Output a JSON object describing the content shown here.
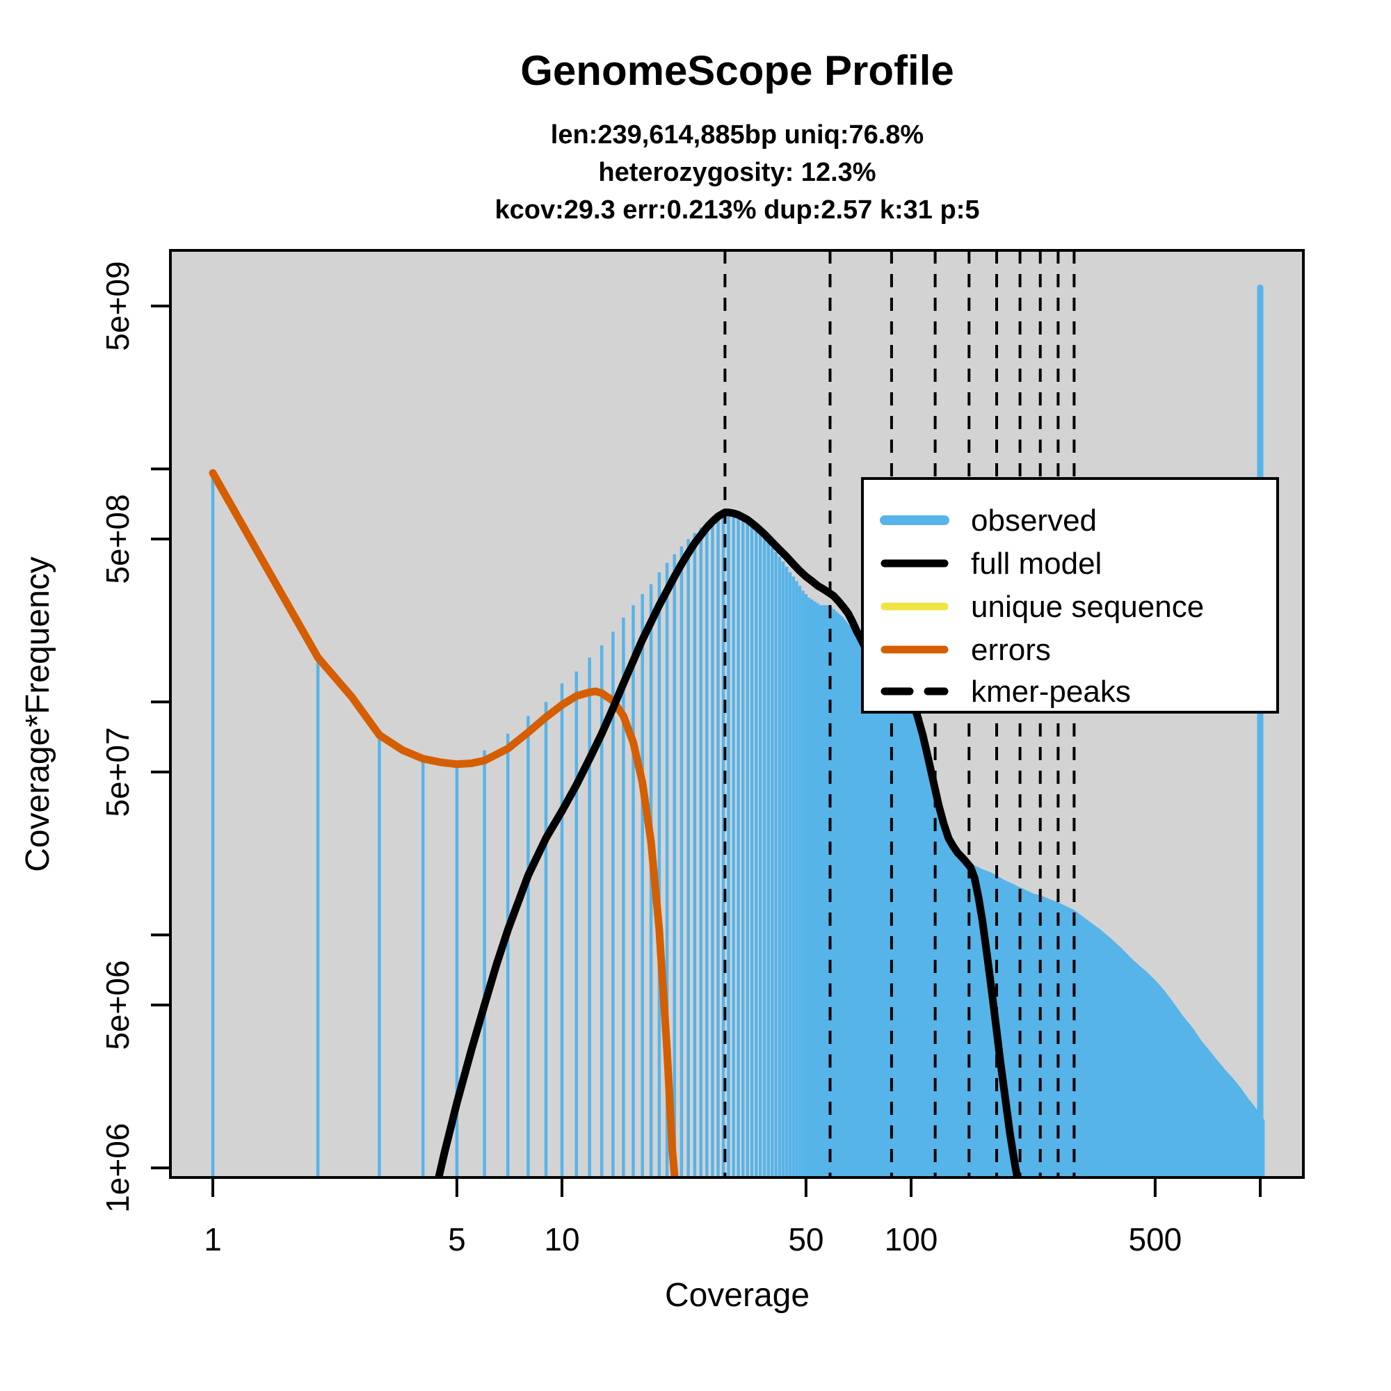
{
  "title": "GenomeScope Profile",
  "subtitle_lines": [
    "len:239,614,885bp uniq:76.8%",
    "heterozygosity: 12.3%",
    "kcov:29.3 err:0.213%  dup:2.57  k:31 p:5"
  ],
  "colors": {
    "observed": "#56B4E9",
    "full_model": "#000000",
    "unique_sequence": "#F0E442",
    "errors": "#D55E00",
    "kmer_peaks": "#000000",
    "plot_background": "#D3D3D3",
    "page_background": "#FFFFFF"
  },
  "legend": {
    "items": [
      {
        "label": "observed",
        "color": "#56B4E9",
        "style": "solid"
      },
      {
        "label": "full model",
        "color": "#000000",
        "style": "solid"
      },
      {
        "label": "unique sequence",
        "color": "#F0E442",
        "style": "solid"
      },
      {
        "label": "errors",
        "color": "#D55E00",
        "style": "solid"
      },
      {
        "label": "kmer-peaks",
        "color": "#000000",
        "style": "dashed"
      }
    ]
  },
  "axes": {
    "x": {
      "label": "Coverage",
      "scale": "log",
      "ticks": [
        {
          "v": 1,
          "label": "1"
        },
        {
          "v": 5,
          "label": "5"
        },
        {
          "v": 10,
          "label": "10"
        },
        {
          "v": 50,
          "label": "50"
        },
        {
          "v": 100,
          "label": "100"
        },
        {
          "v": 500,
          "label": "500"
        },
        {
          "v": 1000,
          "label": ""
        }
      ]
    },
    "y": {
      "label": "Coverage*Frequency",
      "scale": "log",
      "ticks": [
        {
          "v": 1000000.0,
          "label": "1e+06"
        },
        {
          "v": 5000000.0,
          "label": "5e+06"
        },
        {
          "v": 10000000.0,
          "label": ""
        },
        {
          "v": 50000000.0,
          "label": "5e+07"
        },
        {
          "v": 100000000.0,
          "label": ""
        },
        {
          "v": 500000000.0,
          "label": "5e+08"
        },
        {
          "v": 1000000000.0,
          "label": ""
        },
        {
          "v": 5000000000.0,
          "label": "5e+09"
        }
      ]
    }
  },
  "chart_data": {
    "type": "area",
    "title": "GenomeScope Profile",
    "xlabel": "Coverage",
    "ylabel": "Coverage*Frequency",
    "x_domain": [
      0.76,
      1330
    ],
    "y_domain": [
      910000.0,
      8700000000.0
    ],
    "grid": false,
    "legend_position": "upper-right-inside",
    "kmer_peaks": [
      29.3,
      58.6,
      87.9,
      117.2,
      146.5,
      175.8,
      205.1,
      234.4,
      263.7,
      293.0
    ],
    "observed_bars": {
      "start_coverage": 1,
      "values": [
        960000000.0,
        153000000.0,
        70000000.0,
        56000000.0,
        55000000.0,
        62000000.0,
        73000000.0,
        87000000.0,
        100000000.0,
        120000000.0,
        135000000.0,
        155000000.0,
        175000000.0,
        200000000.0,
        230000000.0,
        260000000.0,
        290000000.0,
        320000000.0,
        360000000.0,
        395000000.0,
        430000000.0,
        465000000.0,
        500000000.0,
        530000000.0,
        560000000.0,
        590000000.0,
        610000000.0,
        630000000.0,
        640000000.0,
        645000000.0,
        640000000.0,
        630000000.0,
        615000000.0,
        600000000.0,
        580000000.0,
        560000000.0,
        535000000.0,
        510000000.0,
        485000000.0,
        460000000.0,
        440000000.0,
        420000000.0,
        400000000.0,
        380000000.0,
        360000000.0,
        345000000.0,
        330000000.0,
        315000000.0,
        300000000.0,
        290000000.0,
        280000000.0,
        275000000.0,
        270000000.0,
        265000000.0,
        260000000.0,
        260000000.0,
        260000000.0,
        260000000.0,
        255000000.0,
        250000000.0
      ]
    },
    "observed_tail": [
      [
        60,
        250000000.0
      ],
      [
        64,
        230000000.0
      ],
      [
        68,
        205000000.0
      ],
      [
        72,
        180000000.0
      ],
      [
        76,
        155000000.0
      ],
      [
        80,
        135000000.0
      ],
      [
        84,
        120000000.0
      ],
      [
        88,
        112000000.0
      ],
      [
        92,
        108000000.0
      ],
      [
        96,
        106000000.0
      ],
      [
        100,
        105000000.0
      ],
      [
        104,
        88000000.0
      ],
      [
        108,
        71000000.0
      ],
      [
        112,
        56000000.0
      ],
      [
        116,
        45000000.0
      ],
      [
        120,
        37000000.0
      ],
      [
        124,
        31000000.0
      ],
      [
        128,
        27500000.0
      ],
      [
        132,
        25000000.0
      ],
      [
        136,
        23500000.0
      ],
      [
        140,
        22500000.0
      ],
      [
        145,
        21000000.0
      ],
      [
        150,
        20000000.0
      ],
      [
        156,
        19500000.0
      ],
      [
        162,
        19000000.0
      ],
      [
        170,
        18500000.0
      ],
      [
        176,
        18000000.0
      ],
      [
        185,
        17200000.0
      ],
      [
        195,
        16600000.0
      ],
      [
        205,
        16000000.0
      ],
      [
        215,
        15500000.0
      ],
      [
        225,
        15000000.0
      ],
      [
        235,
        14800000.0
      ],
      [
        250,
        14200000.0
      ],
      [
        264,
        13800000.0
      ],
      [
        280,
        13200000.0
      ],
      [
        293,
        12800000.0
      ],
      [
        310,
        12000000.0
      ],
      [
        330,
        11200000.0
      ],
      [
        350,
        10500000.0
      ],
      [
        375,
        9600000.0
      ],
      [
        400,
        8800000.0
      ],
      [
        425,
        8000000.0
      ],
      [
        450,
        7400000.0
      ],
      [
        475,
        6900000.0
      ],
      [
        500,
        6400000.0
      ],
      [
        530,
        5800000.0
      ],
      [
        560,
        5200000.0
      ],
      [
        600,
        4500000.0
      ],
      [
        640,
        4000000.0
      ],
      [
        680,
        3500000.0
      ],
      [
        720,
        3150000.0
      ],
      [
        760,
        2850000.0
      ],
      [
        800,
        2600000.0
      ],
      [
        840,
        2400000.0
      ],
      [
        880,
        2200000.0
      ],
      [
        920,
        2000000.0
      ],
      [
        960,
        1850000.0
      ],
      [
        1000,
        1700000.0
      ],
      [
        1030,
        1600000.0
      ]
    ],
    "observed_last_bin": {
      "coverage": 1000,
      "value": 6000000000.0
    },
    "full_model": [
      [
        4.35,
        800000.0
      ],
      [
        4.6,
        1150000.0
      ],
      [
        5,
        1900000.0
      ],
      [
        5.5,
        3200000.0
      ],
      [
        6,
        5000000.0
      ],
      [
        6.5,
        7500000.0
      ],
      [
        7,
        10500000.0
      ],
      [
        8,
        18000000.0
      ],
      [
        9,
        26000000.0
      ],
      [
        10,
        34000000.0
      ],
      [
        11,
        44000000.0
      ],
      [
        12,
        57000000.0
      ],
      [
        13,
        73000000.0
      ],
      [
        14,
        94000000.0
      ],
      [
        15,
        120000000.0
      ],
      [
        16,
        150000000.0
      ],
      [
        17,
        185000000.0
      ],
      [
        18,
        220000000.0
      ],
      [
        19,
        260000000.0
      ],
      [
        20,
        300000000.0
      ],
      [
        21,
        345000000.0
      ],
      [
        22,
        390000000.0
      ],
      [
        23,
        435000000.0
      ],
      [
        24,
        480000000.0
      ],
      [
        25,
        520000000.0
      ],
      [
        26,
        560000000.0
      ],
      [
        27,
        595000000.0
      ],
      [
        28,
        625000000.0
      ],
      [
        29,
        645000000.0
      ],
      [
        29.3,
        650000000.0
      ],
      [
        30,
        650000000.0
      ],
      [
        31,
        645000000.0
      ],
      [
        32,
        635000000.0
      ],
      [
        33,
        620000000.0
      ],
      [
        34,
        605000000.0
      ],
      [
        35,
        585000000.0
      ],
      [
        36,
        565000000.0
      ],
      [
        38,
        525000000.0
      ],
      [
        40,
        485000000.0
      ],
      [
        42,
        450000000.0
      ],
      [
        44,
        420000000.0
      ],
      [
        46,
        390000000.0
      ],
      [
        48,
        365000000.0
      ],
      [
        50,
        345000000.0
      ],
      [
        52,
        330000000.0
      ],
      [
        54,
        315000000.0
      ],
      [
        56,
        305000000.0
      ],
      [
        58,
        295000000.0
      ],
      [
        60,
        285000000.0
      ],
      [
        62,
        270000000.0
      ],
      [
        64,
        255000000.0
      ],
      [
        66,
        240000000.0
      ],
      [
        68,
        220000000.0
      ],
      [
        70,
        200000000.0
      ],
      [
        72,
        185000000.0
      ],
      [
        74,
        170000000.0
      ],
      [
        76,
        155000000.0
      ],
      [
        78,
        142000000.0
      ],
      [
        80,
        132000000.0
      ],
      [
        82,
        125000000.0
      ],
      [
        84,
        120000000.0
      ],
      [
        86,
        116000000.0
      ],
      [
        88,
        113000000.0
      ],
      [
        90,
        111000000.0
      ],
      [
        93,
        108000000.0
      ],
      [
        96,
        106000000.0
      ],
      [
        100,
        104000000.0
      ],
      [
        104,
        88000000.0
      ],
      [
        108,
        72000000.0
      ],
      [
        112,
        57000000.0
      ],
      [
        116,
        45000000.0
      ],
      [
        120,
        36000000.0
      ],
      [
        124,
        30000000.0
      ],
      [
        128,
        26000000.0
      ],
      [
        132,
        24000000.0
      ],
      [
        136,
        22500000.0
      ],
      [
        140,
        21500000.0
      ],
      [
        144,
        20500000.0
      ],
      [
        148,
        19500000.0
      ],
      [
        152,
        17500000.0
      ],
      [
        156,
        14500000.0
      ],
      [
        160,
        11500000.0
      ],
      [
        165,
        8200000.0
      ],
      [
        170,
        5800000.0
      ],
      [
        175,
        4100000.0
      ],
      [
        180,
        2900000.0
      ],
      [
        186,
        2000000.0
      ],
      [
        192,
        1400000.0
      ],
      [
        198,
        1050000.0
      ],
      [
        204,
        820000.0
      ]
    ],
    "errors": [
      [
        1,
        960000000.0
      ],
      [
        1.5,
        330000000.0
      ],
      [
        2,
        155000000.0
      ],
      [
        2.5,
        105000000.0
      ],
      [
        3,
        72000000.0
      ],
      [
        3.5,
        62000000.0
      ],
      [
        4,
        57000000.0
      ],
      [
        4.5,
        55000000.0
      ],
      [
        5,
        54000000.0
      ],
      [
        5.5,
        54500000.0
      ],
      [
        6,
        56000000.0
      ],
      [
        7,
        63000000.0
      ],
      [
        8,
        74000000.0
      ],
      [
        9,
        86000000.0
      ],
      [
        10,
        97000000.0
      ],
      [
        11,
        106000000.0
      ],
      [
        12,
        110000000.0
      ],
      [
        12.5,
        111000000.0
      ],
      [
        13,
        109000000.0
      ],
      [
        14,
        101000000.0
      ],
      [
        15,
        87000000.0
      ],
      [
        16,
        67000000.0
      ],
      [
        17,
        45000000.0
      ],
      [
        18,
        25000000.0
      ],
      [
        19,
        10500000.0
      ],
      [
        20,
        3200000.0
      ],
      [
        20.7,
        1200000.0
      ],
      [
        21.2,
        800000.0
      ]
    ]
  }
}
